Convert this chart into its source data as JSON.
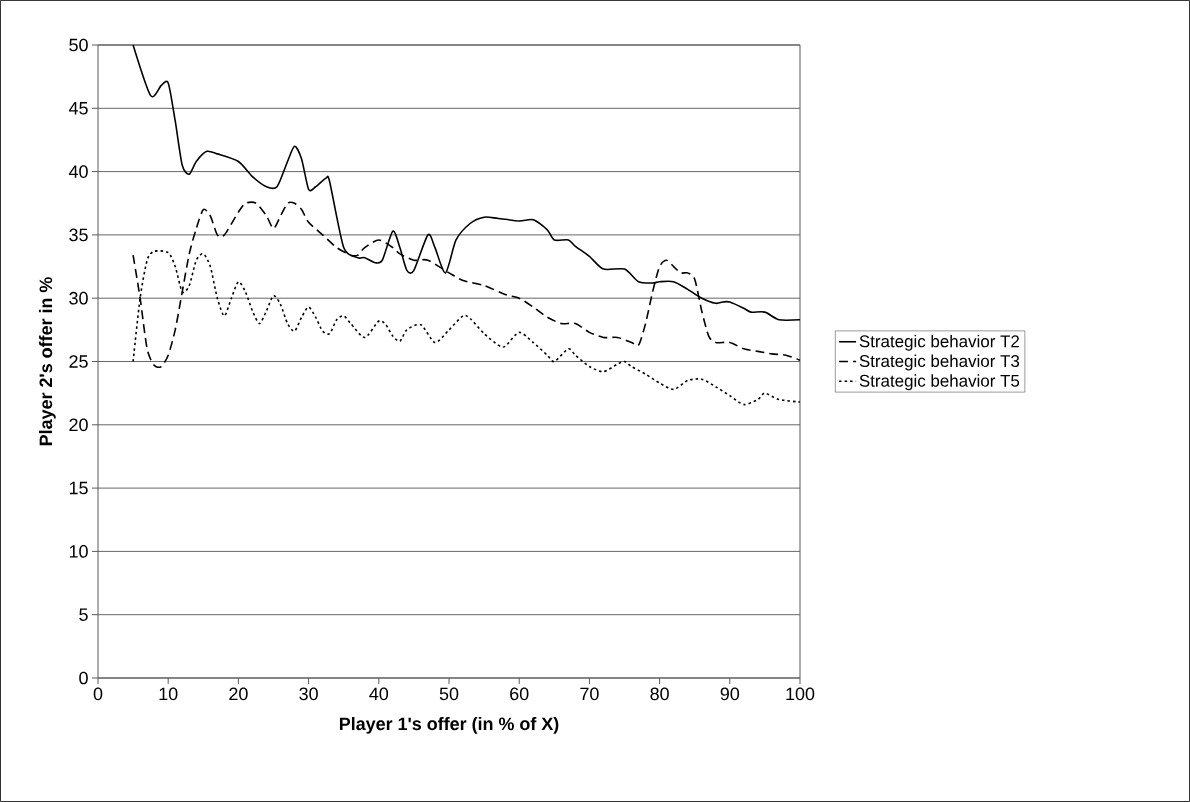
{
  "chart_data": {
    "type": "line",
    "xlabel": "Player 1's offer (in % of X)",
    "ylabel": "Player 2's offer in %",
    "xlim": [
      0,
      100
    ],
    "xticks": [
      0,
      10,
      20,
      30,
      40,
      50,
      60,
      70,
      80,
      90,
      100
    ],
    "ylim": [
      0,
      50
    ],
    "yticks": [
      0,
      5,
      10,
      15,
      20,
      25,
      30,
      35,
      40,
      45,
      50
    ],
    "grid": "y",
    "legend": "right",
    "marker": "none",
    "series": [
      {
        "name": "Strategic behavior T2",
        "color": "#000000",
        "line_style": "solid",
        "x": [
          5,
          7.5,
          9,
          10,
          11,
          12,
          13,
          14,
          15.5,
          17,
          20,
          22,
          24,
          25.5,
          27,
          28,
          29,
          30,
          31,
          32.5,
          33,
          35,
          37,
          38,
          39.5,
          40.5,
          42,
          43,
          44,
          45,
          47,
          48,
          49.5,
          51,
          53,
          55,
          57,
          60,
          62,
          64,
          65,
          67,
          68,
          70,
          72,
          75,
          77,
          79,
          80,
          82,
          84,
          86,
          88,
          89,
          90,
          92,
          93,
          95,
          97,
          100
        ],
        "values": [
          50,
          46,
          46.8,
          47,
          44,
          40.5,
          39.8,
          40.8,
          41.6,
          41.4,
          40.8,
          39.6,
          38.8,
          38.8,
          40.8,
          42,
          41,
          38.6,
          38.8,
          39.5,
          39.2,
          34,
          33.2,
          33.2,
          32.8,
          33,
          35.3,
          34,
          32.2,
          32.2,
          35,
          34,
          32,
          34.6,
          35.9,
          36.4,
          36.3,
          36.1,
          36.2,
          35.4,
          34.6,
          34.6,
          34.1,
          33.3,
          32.3,
          32.3,
          31.3,
          31.2,
          31.3,
          31.3,
          30.7,
          30,
          29.6,
          29.7,
          29.7,
          29.2,
          28.9,
          28.9,
          28.3,
          28.3
        ]
      },
      {
        "name": "Strategic behavior T3",
        "color": "#000000",
        "line_style": "dashed",
        "x": [
          5,
          6,
          7,
          8,
          9,
          10,
          11,
          12,
          13,
          14,
          15,
          16,
          17,
          18,
          20,
          21,
          22.5,
          24,
          25,
          26,
          27,
          28,
          29,
          30,
          32,
          34,
          36,
          37,
          38,
          40,
          42,
          43,
          45,
          47,
          50,
          52,
          55,
          58,
          60,
          62,
          64,
          66,
          68,
          70,
          72,
          74,
          76,
          77,
          78,
          79,
          80,
          81,
          82,
          83,
          84,
          85,
          86,
          87,
          88,
          90,
          92,
          94,
          96,
          98,
          100
        ],
        "values": [
          33.4,
          30,
          26,
          24.7,
          24.6,
          25.5,
          27.5,
          30.5,
          33.5,
          35.5,
          37,
          36.5,
          35,
          35,
          36.8,
          37.5,
          37.5,
          36.5,
          35.5,
          36.5,
          37.5,
          37.5,
          37,
          36,
          35,
          34,
          33.4,
          33.4,
          34,
          34.6,
          34,
          33.5,
          33,
          33,
          32,
          31.4,
          31,
          30.3,
          30,
          29.3,
          28.5,
          28,
          28,
          27.3,
          26.9,
          26.9,
          26.5,
          26.3,
          28,
          30.5,
          32.5,
          33,
          32.5,
          32,
          32,
          31.5,
          29,
          27,
          26.5,
          26.5,
          26,
          25.8,
          25.6,
          25.5,
          25.1
        ]
      },
      {
        "name": "Strategic behavior T5",
        "color": "#000000",
        "line_style": "dotted",
        "x": [
          5,
          6,
          7,
          8,
          10,
          11,
          12,
          13,
          14,
          15,
          16,
          17,
          18,
          19,
          20,
          21,
          22,
          23,
          24,
          25,
          26,
          27,
          28,
          29,
          30,
          31,
          32,
          33,
          34,
          35,
          36,
          38,
          40,
          41,
          42,
          43,
          44,
          46,
          48,
          50,
          52,
          53,
          55,
          57,
          58,
          60,
          62,
          64,
          65,
          67,
          68,
          70,
          72,
          74,
          75,
          76,
          78,
          80,
          82,
          84,
          86,
          88,
          90,
          92,
          94,
          95,
          97,
          100
        ],
        "values": [
          25,
          30,
          33,
          33.7,
          33.6,
          32.5,
          30.5,
          31,
          33,
          33.5,
          32.5,
          30,
          28.6,
          30,
          31.3,
          30.5,
          29,
          28,
          29,
          30.2,
          29.5,
          28,
          27.4,
          28.5,
          29.3,
          28.5,
          27.4,
          27.2,
          28.3,
          28.6,
          28,
          26.9,
          28.2,
          27.9,
          27,
          26.6,
          27.5,
          27.9,
          26.5,
          27.5,
          28.6,
          28.4,
          27.2,
          26.3,
          26.2,
          27.3,
          26.5,
          25.5,
          25,
          26,
          25.5,
          24.6,
          24.2,
          24.8,
          25,
          24.6,
          24,
          23.3,
          22.8,
          23.5,
          23.6,
          23,
          22.3,
          21.6,
          22,
          22.5,
          22,
          21.8
        ]
      }
    ]
  }
}
